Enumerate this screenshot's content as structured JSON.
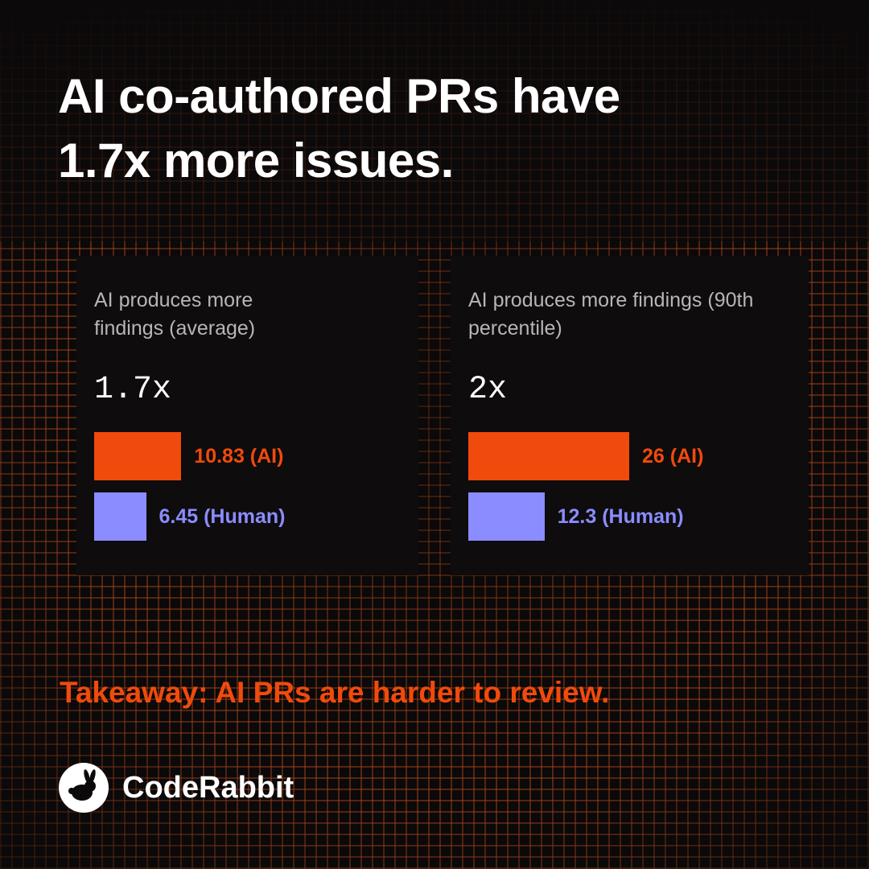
{
  "title": "AI co-authored PRs have 1.7x more issues.",
  "takeaway": "Takeaway: AI PRs are harder to review.",
  "brand": "CodeRabbit",
  "chart_data": [
    {
      "type": "bar",
      "orientation": "horizontal",
      "title": "AI produces more findings (average)",
      "headline": "1.7x",
      "values": [
        10.83,
        6.45
      ],
      "value_labels": [
        "10.83 (AI)",
        "6.45 (Human)"
      ],
      "colors": [
        "#f04a0c",
        "#8b8cff"
      ],
      "xlim": [
        0,
        40
      ]
    },
    {
      "type": "bar",
      "orientation": "horizontal",
      "title": "AI produces more findings (90th percentile)",
      "headline": "2x",
      "values": [
        26,
        12.3
      ],
      "value_labels": [
        "26 (AI)",
        "12.3 (Human)"
      ],
      "colors": [
        "#f04a0c",
        "#8b8cff"
      ],
      "xlim": [
        0,
        52
      ]
    }
  ]
}
